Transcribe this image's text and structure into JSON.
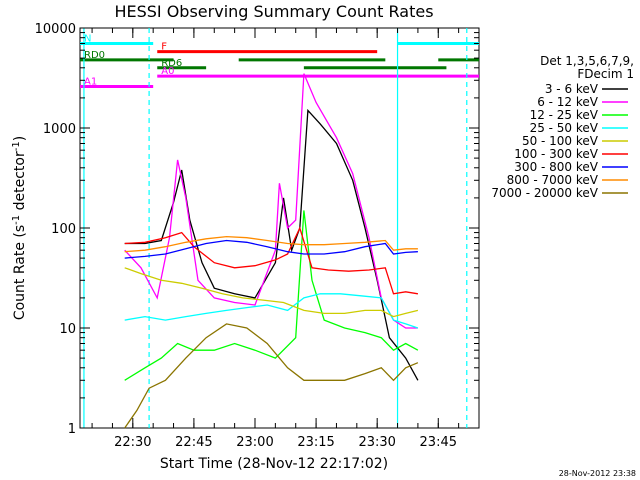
{
  "chart_data": {
    "type": "line",
    "title": "HESSI Observing Summary Count Rates",
    "ylabel_main": "Count Rate (s",
    "ylabel_sup": "-1",
    "ylabel_mid": " detector",
    "ylabel_sup2": "-1",
    "ylabel_end": ")",
    "xlabel": "Start Time (28-Nov-12 22:17:02)",
    "timestamp": "28-Nov-2012 23:38",
    "y_scale": "log",
    "ylim": [
      1,
      10000
    ],
    "xlim": [
      "22:17:02",
      "23:55:00"
    ],
    "x_ticks": [
      "22:30",
      "22:45",
      "23:00",
      "23:15",
      "23:30",
      "23:45"
    ],
    "y_ticks": [
      "1",
      "10",
      "100",
      "1000",
      "10000"
    ],
    "legend": {
      "header1": "Det 1,3,5,6,7,9,",
      "header2": "FDecim 1",
      "placement": "right",
      "entries": [
        {
          "label": "3 - 6 keV",
          "color": "#000000"
        },
        {
          "label": "6 - 12 keV",
          "color": "#ff00ff"
        },
        {
          "label": "12 - 25 keV",
          "color": "#00ff00"
        },
        {
          "label": "25 - 50 keV",
          "color": "#00ffff"
        },
        {
          "label": "50 - 100 keV",
          "color": "#cccc00"
        },
        {
          "label": "100 - 300 keV",
          "color": "#ff0000"
        },
        {
          "label": "300 - 800 keV",
          "color": "#0000ff"
        },
        {
          "label": "800 - 7000 keV",
          "color": "#ff8c00"
        },
        {
          "label": "7000 - 20000 keV",
          "color": "#8b7500"
        }
      ]
    },
    "flag_bars": [
      {
        "label": "N",
        "color": "#00ffff",
        "level": 7000,
        "segments": [
          [
            "22:17:02",
            "22:35"
          ],
          [
            "23:35",
            "23:55"
          ]
        ]
      },
      {
        "label": "F",
        "color": "#ff0000",
        "level": 5800,
        "segments": [
          [
            "22:36",
            "23:30"
          ]
        ]
      },
      {
        "label": "RD0",
        "color": "#007700",
        "level": 4800,
        "segments": [
          [
            "22:17:02",
            "22:40"
          ],
          [
            "22:56",
            "23:32"
          ],
          [
            "23:45",
            "23:55"
          ]
        ]
      },
      {
        "label": "RD6",
        "color": "#007700",
        "level": 4000,
        "segments": [
          [
            "22:36",
            "22:48"
          ],
          [
            "23:12",
            "23:47"
          ]
        ]
      },
      {
        "label": "A0",
        "color": "#ff00ff",
        "level": 3300,
        "segments": [
          [
            "22:36",
            "23:55"
          ]
        ]
      },
      {
        "label": "A1",
        "color": "#ff00ff",
        "level": 2600,
        "segments": [
          [
            "22:17:02",
            "22:35"
          ]
        ]
      }
    ],
    "vertical_markers": [
      {
        "time": "22:18",
        "color": "#00ffff",
        "style": "solid"
      },
      {
        "time": "22:34",
        "color": "#00ffff",
        "style": "dashed"
      },
      {
        "time": "23:35",
        "color": "#00ffff",
        "style": "solid"
      },
      {
        "time": "23:52",
        "color": "#00ffff",
        "style": "dashed"
      }
    ],
    "series": [
      {
        "name": "3 - 6 keV",
        "color": "#000000",
        "points": [
          [
            "22:28",
            70
          ],
          [
            "22:33",
            70
          ],
          [
            "22:37",
            75
          ],
          [
            "22:40",
            180
          ],
          [
            "22:42",
            380
          ],
          [
            "22:44",
            120
          ],
          [
            "22:47",
            45
          ],
          [
            "22:50",
            25
          ],
          [
            "22:55",
            22
          ],
          [
            "23:00",
            20
          ],
          [
            "23:05",
            45
          ],
          [
            "23:07",
            200
          ],
          [
            "23:09",
            60
          ],
          [
            "23:11",
            100
          ],
          [
            "23:13",
            1500
          ],
          [
            "23:16",
            1100
          ],
          [
            "23:20",
            700
          ],
          [
            "23:24",
            300
          ],
          [
            "23:27",
            100
          ],
          [
            "23:30",
            30
          ],
          [
            "23:33",
            8
          ],
          [
            "23:37",
            5
          ],
          [
            "23:40",
            3
          ]
        ]
      },
      {
        "name": "6 - 12 keV",
        "color": "#ff00ff",
        "points": [
          [
            "22:28",
            60
          ],
          [
            "22:32",
            40
          ],
          [
            "22:36",
            20
          ],
          [
            "22:39",
            80
          ],
          [
            "22:41",
            480
          ],
          [
            "22:43",
            200
          ],
          [
            "22:46",
            30
          ],
          [
            "22:50",
            20
          ],
          [
            "22:55",
            18
          ],
          [
            "23:00",
            17
          ],
          [
            "23:05",
            60
          ],
          [
            "23:06",
            280
          ],
          [
            "23:08",
            100
          ],
          [
            "23:10",
            120
          ],
          [
            "23:12",
            3500
          ],
          [
            "23:15",
            1800
          ],
          [
            "23:20",
            800
          ],
          [
            "23:24",
            350
          ],
          [
            "23:28",
            80
          ],
          [
            "23:31",
            20
          ],
          [
            "23:34",
            12
          ],
          [
            "23:37",
            10
          ],
          [
            "23:40",
            10
          ]
        ]
      },
      {
        "name": "12 - 25 keV",
        "color": "#00ff00",
        "points": [
          [
            "22:28",
            3
          ],
          [
            "22:33",
            4
          ],
          [
            "22:37",
            5
          ],
          [
            "22:41",
            7
          ],
          [
            "22:45",
            6
          ],
          [
            "22:50",
            6
          ],
          [
            "22:55",
            7
          ],
          [
            "23:00",
            6
          ],
          [
            "23:05",
            5
          ],
          [
            "23:10",
            8
          ],
          [
            "23:12",
            150
          ],
          [
            "23:14",
            30
          ],
          [
            "23:17",
            12
          ],
          [
            "23:22",
            10
          ],
          [
            "23:27",
            9
          ],
          [
            "23:31",
            8
          ],
          [
            "23:34",
            6
          ],
          [
            "23:37",
            7
          ],
          [
            "23:40",
            6
          ]
        ]
      },
      {
        "name": "25 - 50 keV",
        "color": "#00ffff",
        "points": [
          [
            "22:28",
            12
          ],
          [
            "22:33",
            13
          ],
          [
            "22:38",
            12
          ],
          [
            "22:43",
            13
          ],
          [
            "22:48",
            14
          ],
          [
            "22:53",
            15
          ],
          [
            "22:58",
            16
          ],
          [
            "23:03",
            17
          ],
          [
            "23:08",
            15
          ],
          [
            "23:12",
            20
          ],
          [
            "23:16",
            22
          ],
          [
            "23:21",
            22
          ],
          [
            "23:26",
            21
          ],
          [
            "23:31",
            20
          ],
          [
            "23:34",
            12
          ],
          [
            "23:37",
            11
          ],
          [
            "23:40",
            10
          ]
        ]
      },
      {
        "name": "50 - 100 keV",
        "color": "#cccc00",
        "points": [
          [
            "22:28",
            40
          ],
          [
            "22:32",
            35
          ],
          [
            "22:37",
            30
          ],
          [
            "22:42",
            28
          ],
          [
            "22:47",
            25
          ],
          [
            "22:52",
            22
          ],
          [
            "22:57",
            20
          ],
          [
            "23:02",
            19
          ],
          [
            "23:07",
            18
          ],
          [
            "23:12",
            15
          ],
          [
            "23:17",
            14
          ],
          [
            "23:22",
            14
          ],
          [
            "23:27",
            15
          ],
          [
            "23:31",
            15
          ],
          [
            "23:34",
            13
          ],
          [
            "23:37",
            14
          ],
          [
            "23:40",
            15
          ]
        ]
      },
      {
        "name": "100 - 300 keV",
        "color": "#ff0000",
        "points": [
          [
            "22:28",
            70
          ],
          [
            "22:33",
            72
          ],
          [
            "22:38",
            80
          ],
          [
            "22:42",
            90
          ],
          [
            "22:45",
            65
          ],
          [
            "22:50",
            45
          ],
          [
            "22:55",
            40
          ],
          [
            "23:00",
            42
          ],
          [
            "23:05",
            48
          ],
          [
            "23:08",
            55
          ],
          [
            "23:11",
            100
          ],
          [
            "23:14",
            40
          ],
          [
            "23:18",
            38
          ],
          [
            "23:23",
            37
          ],
          [
            "23:28",
            38
          ],
          [
            "23:32",
            40
          ],
          [
            "23:34",
            22
          ],
          [
            "23:37",
            23
          ],
          [
            "23:40",
            22
          ]
        ]
      },
      {
        "name": "300 - 800 keV",
        "color": "#0000ff",
        "points": [
          [
            "22:28",
            50
          ],
          [
            "22:33",
            52
          ],
          [
            "22:38",
            55
          ],
          [
            "22:43",
            62
          ],
          [
            "22:48",
            70
          ],
          [
            "22:53",
            75
          ],
          [
            "22:58",
            72
          ],
          [
            "23:03",
            65
          ],
          [
            "23:08",
            58
          ],
          [
            "23:12",
            55
          ],
          [
            "23:17",
            55
          ],
          [
            "23:22",
            58
          ],
          [
            "23:27",
            65
          ],
          [
            "23:32",
            70
          ],
          [
            "23:34",
            55
          ],
          [
            "23:37",
            57
          ],
          [
            "23:40",
            58
          ]
        ]
      },
      {
        "name": "800 - 7000 keV",
        "color": "#ff8c00",
        "points": [
          [
            "22:28",
            58
          ],
          [
            "22:33",
            60
          ],
          [
            "22:38",
            65
          ],
          [
            "22:43",
            72
          ],
          [
            "22:48",
            78
          ],
          [
            "22:53",
            82
          ],
          [
            "22:58",
            80
          ],
          [
            "23:03",
            75
          ],
          [
            "23:08",
            70
          ],
          [
            "23:12",
            68
          ],
          [
            "23:17",
            68
          ],
          [
            "23:22",
            70
          ],
          [
            "23:27",
            72
          ],
          [
            "23:32",
            75
          ],
          [
            "23:34",
            60
          ],
          [
            "23:37",
            62
          ],
          [
            "23:40",
            62
          ]
        ]
      },
      {
        "name": "7000 - 20000 keV",
        "color": "#8b7500",
        "points": [
          [
            "22:28",
            1
          ],
          [
            "22:31",
            1.5
          ],
          [
            "22:34",
            2.5
          ],
          [
            "22:38",
            3
          ],
          [
            "22:43",
            5
          ],
          [
            "22:48",
            8
          ],
          [
            "22:53",
            11
          ],
          [
            "22:58",
            10
          ],
          [
            "23:03",
            7
          ],
          [
            "23:08",
            4
          ],
          [
            "23:12",
            3
          ],
          [
            "23:17",
            3
          ],
          [
            "23:22",
            3
          ],
          [
            "23:27",
            3.5
          ],
          [
            "23:31",
            4
          ],
          [
            "23:34",
            3
          ],
          [
            "23:37",
            4
          ],
          [
            "23:40",
            4.5
          ]
        ]
      }
    ]
  }
}
